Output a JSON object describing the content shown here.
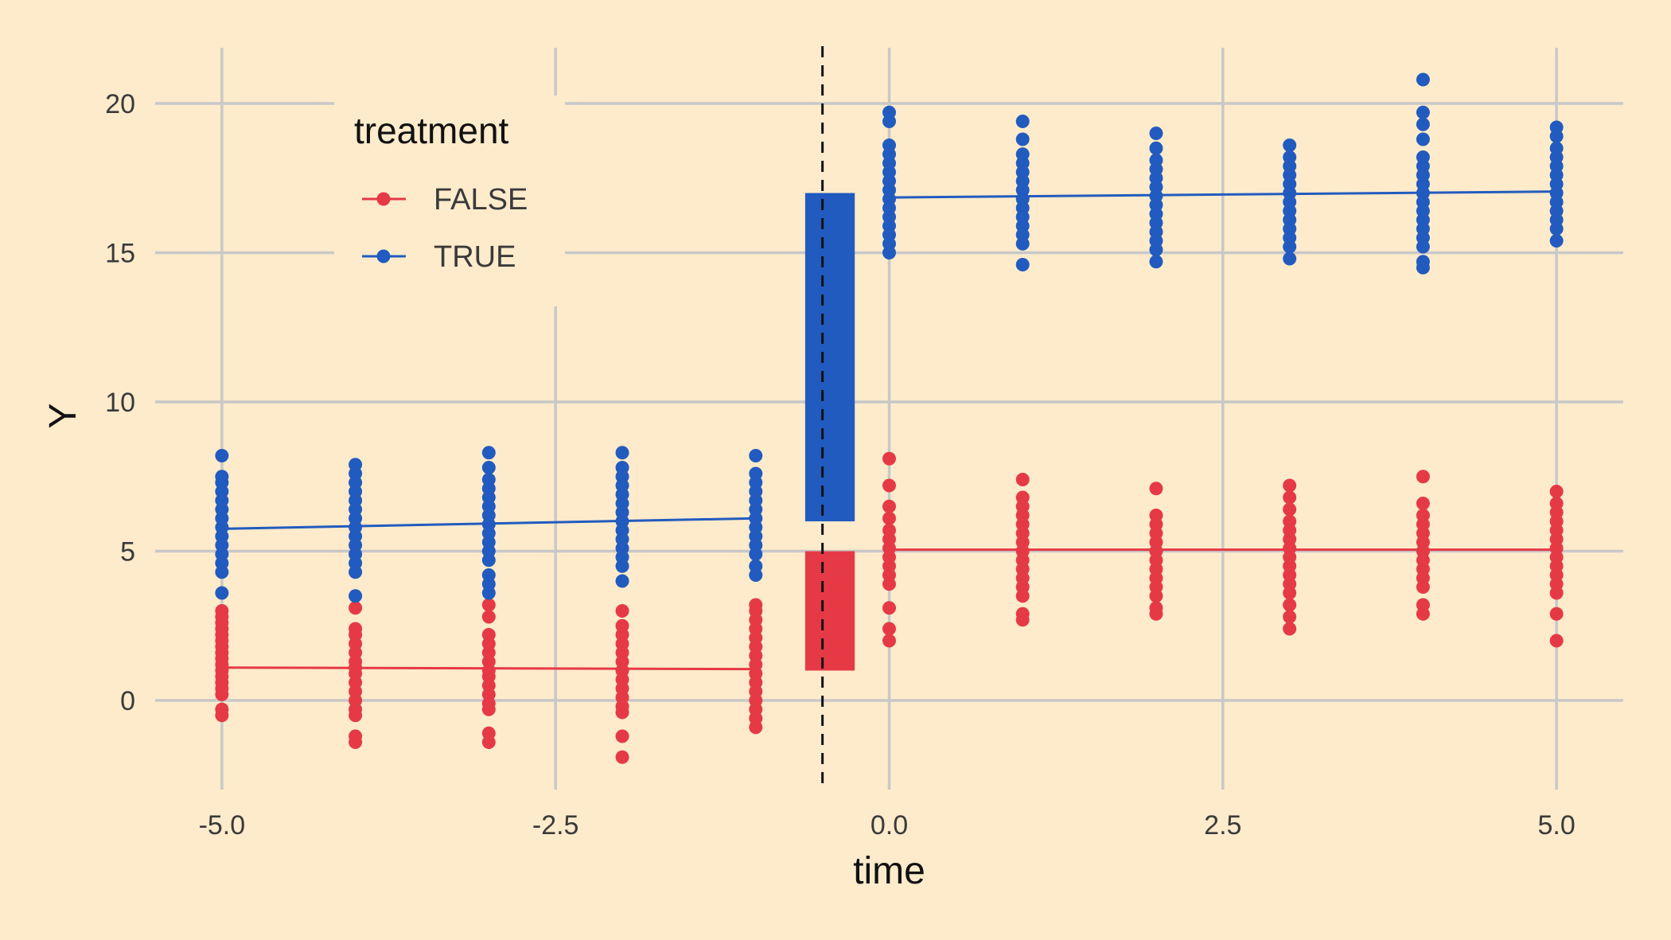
{
  "chart_data": {
    "type": "scatter",
    "xlabel": "time",
    "ylabel": "Y",
    "xlim": [
      -5.5,
      5.5
    ],
    "ylim": [
      -3.2,
      22.0
    ],
    "x_ticks": [
      -5.0,
      -2.5,
      0.0,
      2.5,
      5.0
    ],
    "x_tick_labels": [
      "-5.0",
      "-2.5",
      "0.0",
      "2.5",
      "5.0"
    ],
    "y_ticks": [
      0,
      5,
      10,
      15,
      20
    ],
    "y_tick_labels": [
      "0",
      "5",
      "10",
      "15",
      "20"
    ],
    "grid": true,
    "legend": {
      "title": "treatment",
      "position": "top-left",
      "entries": [
        "FALSE",
        "TRUE"
      ]
    },
    "vline": {
      "x": -0.5,
      "style": "dashed",
      "color": "#111111"
    },
    "series": [
      {
        "name": "FALSE",
        "color": "#e63946",
        "points": [
          {
            "x": -5,
            "ys": [
              -0.5,
              -0.3,
              0.2,
              0.4,
              0.6,
              0.8,
              1.0,
              1.2,
              1.4,
              1.6,
              1.8,
              2.0,
              2.2,
              2.4,
              2.6,
              2.8,
              3.0
            ]
          },
          {
            "x": -4,
            "ys": [
              -1.4,
              -1.2,
              -0.5,
              -0.3,
              0.0,
              0.3,
              0.6,
              0.9,
              1.1,
              1.3,
              1.6,
              1.9,
              2.2,
              2.4,
              3.1
            ]
          },
          {
            "x": -3,
            "ys": [
              -1.4,
              -1.1,
              -0.3,
              -0.1,
              0.2,
              0.5,
              0.8,
              1.0,
              1.3,
              1.6,
              1.9,
              2.2,
              2.8,
              3.2
            ]
          },
          {
            "x": -2,
            "ys": [
              -1.9,
              -1.2,
              -0.4,
              -0.2,
              0.1,
              0.4,
              0.7,
              1.0,
              1.3,
              1.6,
              1.9,
              2.2,
              2.5,
              3.0
            ]
          },
          {
            "x": -1,
            "ys": [
              -0.9,
              -0.6,
              -0.3,
              0.0,
              0.3,
              0.6,
              0.9,
              1.2,
              1.5,
              1.8,
              2.1,
              2.4,
              2.7,
              3.0,
              3.2
            ]
          },
          {
            "x": 0,
            "ys": [
              2.0,
              2.4,
              3.1,
              3.9,
              4.2,
              4.5,
              4.8,
              5.1,
              5.4,
              5.7,
              6.1,
              6.5,
              7.2,
              8.1
            ]
          },
          {
            "x": 1,
            "ys": [
              2.7,
              2.9,
              3.5,
              3.8,
              4.1,
              4.4,
              4.7,
              5.0,
              5.3,
              5.6,
              5.9,
              6.2,
              6.5,
              6.8,
              7.4
            ]
          },
          {
            "x": 2,
            "ys": [
              2.9,
              3.1,
              3.5,
              3.8,
              4.1,
              4.4,
              4.7,
              5.0,
              5.3,
              5.6,
              5.9,
              6.2,
              7.1
            ]
          },
          {
            "x": 3,
            "ys": [
              2.4,
              2.8,
              3.2,
              3.6,
              3.9,
              4.2,
              4.5,
              4.8,
              5.1,
              5.4,
              5.7,
              6.0,
              6.4,
              6.8,
              7.2
            ]
          },
          {
            "x": 4,
            "ys": [
              2.9,
              3.2,
              3.8,
              4.1,
              4.4,
              4.7,
              5.0,
              5.3,
              5.6,
              5.9,
              6.2,
              6.6,
              7.5
            ]
          },
          {
            "x": 5,
            "ys": [
              2.0,
              2.9,
              3.6,
              3.9,
              4.2,
              4.5,
              4.8,
              5.1,
              5.4,
              5.7,
              6.0,
              6.3,
              6.6,
              7.0
            ]
          }
        ],
        "trend": [
          {
            "x": -5,
            "y": 1.1
          },
          {
            "x": -1,
            "y": 1.05
          },
          {
            "x": 0,
            "y": 5.05
          },
          {
            "x": 5,
            "y": 5.05
          }
        ],
        "bar": {
          "x0": -0.6,
          "x1": -0.3,
          "ymin": 1.0,
          "ymax": 5.0
        }
      },
      {
        "name": "TRUE",
        "color": "#225bbf",
        "points": [
          {
            "x": -5,
            "ys": [
              3.6,
              4.3,
              4.6,
              4.9,
              5.2,
              5.5,
              5.8,
              6.1,
              6.4,
              6.7,
              7.0,
              7.3,
              7.5,
              8.2
            ]
          },
          {
            "x": -4,
            "ys": [
              3.5,
              4.3,
              4.6,
              4.9,
              5.2,
              5.5,
              5.8,
              6.1,
              6.4,
              6.7,
              7.0,
              7.3,
              7.6,
              7.9
            ]
          },
          {
            "x": -3,
            "ys": [
              3.6,
              3.9,
              4.2,
              4.7,
              5.0,
              5.3,
              5.6,
              5.9,
              6.2,
              6.5,
              6.8,
              7.1,
              7.4,
              7.8,
              8.3
            ]
          },
          {
            "x": -2,
            "ys": [
              4.0,
              4.5,
              4.8,
              5.1,
              5.4,
              5.7,
              6.0,
              6.3,
              6.6,
              6.9,
              7.2,
              7.5,
              7.8,
              8.3
            ]
          },
          {
            "x": -1,
            "ys": [
              4.2,
              4.5,
              4.9,
              5.2,
              5.5,
              5.8,
              6.1,
              6.4,
              6.7,
              7.0,
              7.3,
              7.6,
              8.2
            ]
          },
          {
            "x": 0,
            "ys": [
              15.0,
              15.3,
              15.6,
              15.9,
              16.2,
              16.5,
              16.8,
              17.1,
              17.4,
              17.7,
              18.0,
              18.3,
              18.6,
              19.4,
              19.7
            ]
          },
          {
            "x": 1,
            "ys": [
              14.6,
              15.3,
              15.6,
              15.9,
              16.2,
              16.5,
              16.8,
              17.1,
              17.4,
              17.7,
              18.0,
              18.3,
              18.8,
              19.4
            ]
          },
          {
            "x": 2,
            "ys": [
              14.7,
              15.1,
              15.4,
              15.7,
              16.0,
              16.3,
              16.6,
              16.9,
              17.2,
              17.5,
              17.8,
              18.1,
              18.5,
              19.0
            ]
          },
          {
            "x": 3,
            "ys": [
              14.8,
              15.2,
              15.5,
              15.8,
              16.1,
              16.4,
              16.7,
              17.0,
              17.3,
              17.6,
              17.9,
              18.2,
              18.6
            ]
          },
          {
            "x": 4,
            "ys": [
              14.5,
              14.7,
              15.2,
              15.5,
              15.8,
              16.1,
              16.4,
              16.7,
              17.0,
              17.3,
              17.6,
              17.9,
              18.2,
              18.8,
              19.3,
              19.7,
              20.8
            ]
          },
          {
            "x": 5,
            "ys": [
              15.4,
              15.8,
              16.1,
              16.4,
              16.7,
              17.0,
              17.3,
              17.6,
              17.9,
              18.2,
              18.5,
              18.9,
              19.2
            ]
          }
        ],
        "trend": [
          {
            "x": -5,
            "y": 5.75
          },
          {
            "x": -1,
            "y": 6.1
          },
          {
            "x": 0,
            "y": 16.85
          },
          {
            "x": 5,
            "y": 17.05
          }
        ],
        "bar": {
          "x0": -0.6,
          "x1": -0.3,
          "ymin": 6.0,
          "ymax": 17.0
        }
      }
    ]
  }
}
